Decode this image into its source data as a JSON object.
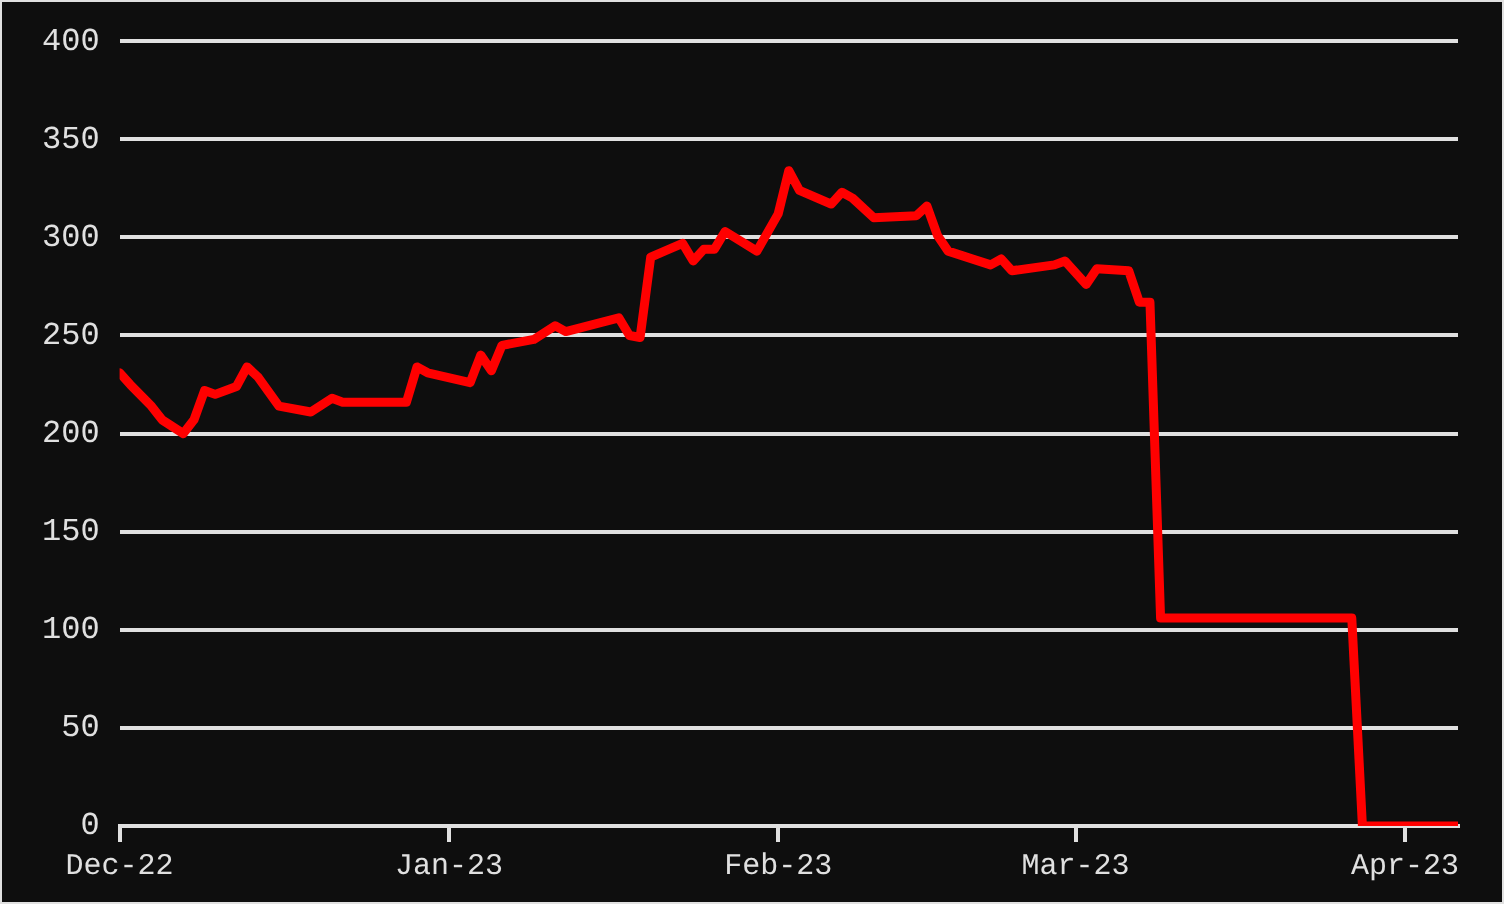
{
  "chart_data": {
    "type": "line",
    "x": [
      "2022-12-01",
      "2022-12-02",
      "2022-12-04",
      "2022-12-05",
      "2022-12-07",
      "2022-12-08",
      "2022-12-09",
      "2022-12-10",
      "2022-12-12",
      "2022-12-13",
      "2022-12-14",
      "2022-12-16",
      "2022-12-19",
      "2022-12-21",
      "2022-12-22",
      "2022-12-23",
      "2022-12-28",
      "2022-12-29",
      "2022-12-30",
      "2023-01-03",
      "2023-01-04",
      "2023-01-05",
      "2023-01-06",
      "2023-01-09",
      "2023-01-11",
      "2023-01-12",
      "2023-01-17",
      "2023-01-18",
      "2023-01-19",
      "2023-01-20",
      "2023-01-23",
      "2023-01-24",
      "2023-01-25",
      "2023-01-26",
      "2023-01-27",
      "2023-01-30",
      "2023-02-01",
      "2023-02-02",
      "2023-02-03",
      "2023-02-06",
      "2023-02-07",
      "2023-02-08",
      "2023-02-10",
      "2023-02-14",
      "2023-02-15",
      "2023-02-16",
      "2023-02-17",
      "2023-02-21",
      "2023-02-22",
      "2023-02-23",
      "2023-02-27",
      "2023-02-28",
      "2023-03-02",
      "2023-03-03",
      "2023-03-06",
      "2023-03-07",
      "2023-03-08",
      "2023-03-09",
      "2023-03-27",
      "2023-03-28",
      "2023-04-06"
    ],
    "series": [
      {
        "color": "#ff0000",
        "values": [
          231,
          225,
          214,
          207,
          200,
          207,
          222,
          220,
          224,
          234,
          229,
          214,
          211,
          218,
          216,
          216,
          216,
          234,
          231,
          226,
          240,
          232,
          245,
          248,
          255,
          252,
          259,
          250,
          249,
          290,
          297,
          288,
          294,
          294,
          303,
          293,
          312,
          334,
          324,
          317,
          323,
          320,
          310,
          311,
          316,
          301,
          293,
          286,
          289,
          283,
          286,
          288,
          276,
          284,
          283,
          267,
          267,
          106,
          106,
          0,
          0
        ]
      }
    ],
    "xlim": [
      "2022-12-01",
      "2023-04-06"
    ],
    "xticks": [
      {
        "value": "2022-12-01",
        "label": "Dec-22"
      },
      {
        "value": "2023-01-01",
        "label": "Jan-23"
      },
      {
        "value": "2023-02-01",
        "label": "Feb-23"
      },
      {
        "value": "2023-03-01",
        "label": "Mar-23"
      },
      {
        "value": "2023-04-01",
        "label": "Apr-23"
      }
    ],
    "ylim": [
      0,
      400
    ],
    "yticks": [
      0,
      50,
      100,
      150,
      200,
      250,
      300,
      350,
      400
    ],
    "grid": "y",
    "legend": false,
    "marker": "none",
    "line_style": "solid"
  }
}
